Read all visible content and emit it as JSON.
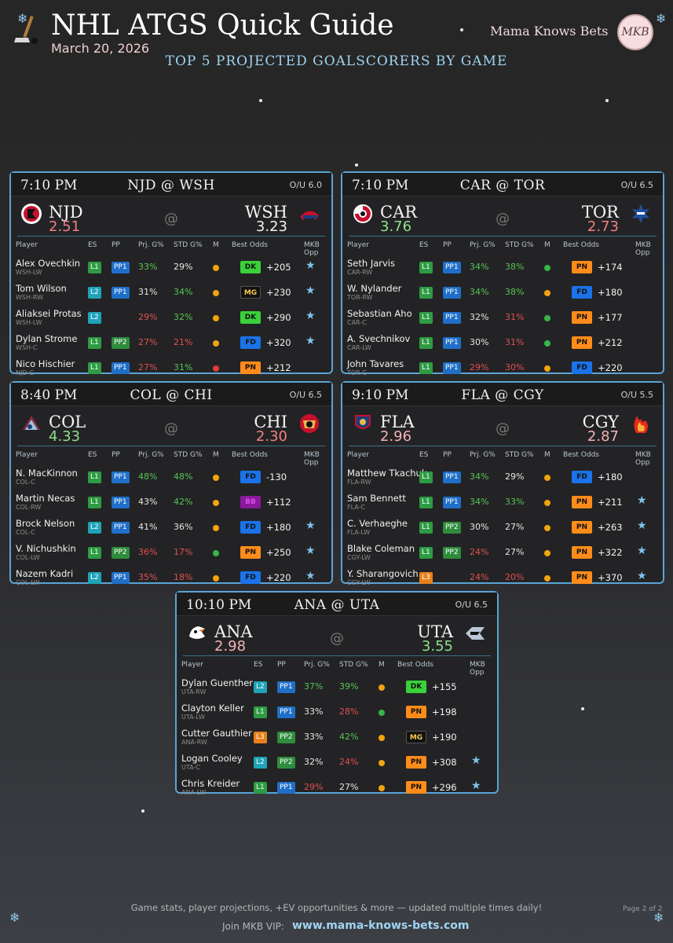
{
  "header": {
    "title": "NHL ATGS Quick Guide",
    "date": "March 20, 2026",
    "subtitle": "TOP 5 PROJECTED GOALSCORERS BY GAME",
    "brand": "Mama Knows Bets",
    "brand_logo_text": "MKB"
  },
  "columns": {
    "player": "Player",
    "es": "ES",
    "pp": "PP",
    "prj": "Prj. G%",
    "std": "STD G%",
    "m": "M",
    "odds": "Best Odds",
    "mkb": "MKB Opp"
  },
  "colors": {
    "L1": "#2e9c44",
    "L2": "#1fa3b8",
    "L3": "#e8811c",
    "PP1": "#1f6fc9",
    "PP2": "#2e8c3c",
    "DK": "#3ad13a",
    "MG": "#111111",
    "FD": "#1a73e8",
    "PN": "#ff8c1a",
    "BB": "#8a1a9c",
    "dot_orange": "#f2a40f",
    "dot_green": "#37b54a",
    "dot_red": "#e03b3b",
    "pct_green": "#56c456",
    "pct_red": "#e05050",
    "pct_neutral": "#e6e6e6",
    "proj_green": "#8fe08f",
    "proj_red": "#f08080",
    "proj_pink": "#f2b3b3"
  },
  "games": [
    {
      "time": "7:10 PM",
      "matchup": "NJD @ WSH",
      "ou": "O/U 6.0",
      "away": {
        "abbr": "NJD",
        "proj": "2.51",
        "proj_tone": "red",
        "logo": "devils-logo"
      },
      "home": {
        "abbr": "WSH",
        "proj": "3.23",
        "proj_tone": "neutral",
        "logo": "capitals-logo"
      },
      "at": "@",
      "players": [
        {
          "name": "Alex Ovechkin",
          "pos": "WSH-LW",
          "es": "L1",
          "pp": "PP1",
          "prj": "33%",
          "prj_tone": "green",
          "std": "29%",
          "std_tone": "neutral",
          "m": "orange",
          "book": "DK",
          "odds": "+205",
          "mkb": true
        },
        {
          "name": "Tom Wilson",
          "pos": "WSH-RW",
          "es": "L2",
          "pp": "PP1",
          "prj": "31%",
          "prj_tone": "neutral",
          "std": "34%",
          "std_tone": "green",
          "m": "orange",
          "book": "MG",
          "odds": "+230",
          "mkb": true
        },
        {
          "name": "Aliaksei Protas",
          "pos": "WSH-LW",
          "es": "L2",
          "pp": "",
          "prj": "29%",
          "prj_tone": "red",
          "std": "32%",
          "std_tone": "green",
          "m": "orange",
          "book": "DK",
          "odds": "+290",
          "mkb": true
        },
        {
          "name": "Dylan Strome",
          "pos": "WSH-C",
          "es": "L1",
          "pp": "PP2",
          "prj": "27%",
          "prj_tone": "red",
          "std": "21%",
          "std_tone": "red",
          "m": "orange",
          "book": "FD",
          "odds": "+320",
          "mkb": true
        },
        {
          "name": "Nico Hischier",
          "pos": "NJD-C",
          "es": "L1",
          "pp": "PP1",
          "prj": "27%",
          "prj_tone": "red",
          "std": "31%",
          "std_tone": "green",
          "m": "red",
          "book": "PN",
          "odds": "+212",
          "mkb": false
        }
      ]
    },
    {
      "time": "7:10 PM",
      "matchup": "CAR @ TOR",
      "ou": "O/U 6.5",
      "away": {
        "abbr": "CAR",
        "proj": "3.76",
        "proj_tone": "green",
        "logo": "hurricanes-logo"
      },
      "home": {
        "abbr": "TOR",
        "proj": "2.73",
        "proj_tone": "red",
        "logo": "maple-leafs-logo"
      },
      "at": "@",
      "players": [
        {
          "name": "Seth Jarvis",
          "pos": "CAR-RW",
          "es": "L1",
          "pp": "PP1",
          "prj": "34%",
          "prj_tone": "green",
          "std": "38%",
          "std_tone": "green",
          "m": "green",
          "book": "PN",
          "odds": "+174",
          "mkb": false
        },
        {
          "name": "W. Nylander",
          "pos": "TOR-RW",
          "es": "L1",
          "pp": "PP1",
          "prj": "34%",
          "prj_tone": "green",
          "std": "38%",
          "std_tone": "green",
          "m": "orange",
          "book": "FD",
          "odds": "+180",
          "mkb": false
        },
        {
          "name": "Sebastian Aho",
          "pos": "CAR-C",
          "es": "L1",
          "pp": "PP1",
          "prj": "32%",
          "prj_tone": "neutral",
          "std": "31%",
          "std_tone": "red",
          "m": "green",
          "book": "PN",
          "odds": "+177",
          "mkb": false
        },
        {
          "name": "A. Svechnikov",
          "pos": "CAR-LW",
          "es": "L1",
          "pp": "PP1",
          "prj": "30%",
          "prj_tone": "neutral",
          "std": "31%",
          "std_tone": "red",
          "m": "green",
          "book": "PN",
          "odds": "+212",
          "mkb": false
        },
        {
          "name": "John Tavares",
          "pos": "TOR-C",
          "es": "L1",
          "pp": "PP1",
          "prj": "29%",
          "prj_tone": "red",
          "std": "30%",
          "std_tone": "red",
          "m": "orange",
          "book": "FD",
          "odds": "+220",
          "mkb": false
        }
      ]
    },
    {
      "time": "8:40 PM",
      "matchup": "COL @ CHI",
      "ou": "O/U 6.5",
      "away": {
        "abbr": "COL",
        "proj": "4.33",
        "proj_tone": "green",
        "logo": "avalanche-logo"
      },
      "home": {
        "abbr": "CHI",
        "proj": "2.30",
        "proj_tone": "red",
        "logo": "blackhawks-logo"
      },
      "at": "@",
      "players": [
        {
          "name": "N. MacKinnon",
          "pos": "COL-C",
          "es": "L1",
          "pp": "PP1",
          "prj": "48%",
          "prj_tone": "green",
          "std": "48%",
          "std_tone": "green",
          "m": "orange",
          "book": "FD",
          "odds": "-130",
          "mkb": false
        },
        {
          "name": "Martin Necas",
          "pos": "COL-RW",
          "es": "L1",
          "pp": "PP1",
          "prj": "43%",
          "prj_tone": "neutral",
          "std": "42%",
          "std_tone": "green",
          "m": "orange",
          "book": "BB",
          "odds": "+112",
          "mkb": false
        },
        {
          "name": "Brock Nelson",
          "pos": "COL-C",
          "es": "L2",
          "pp": "PP1",
          "prj": "41%",
          "prj_tone": "neutral",
          "std": "36%",
          "std_tone": "neutral",
          "m": "orange",
          "book": "FD",
          "odds": "+180",
          "mkb": true
        },
        {
          "name": "V. Nichushkin",
          "pos": "COL-LW",
          "es": "L1",
          "pp": "PP2",
          "prj": "36%",
          "prj_tone": "red",
          "std": "17%",
          "std_tone": "red",
          "m": "green",
          "book": "PN",
          "odds": "+250",
          "mkb": true
        },
        {
          "name": "Nazem Kadri",
          "pos": "COL-LW",
          "es": "L2",
          "pp": "PP1",
          "prj": "35%",
          "prj_tone": "red",
          "std": "18%",
          "std_tone": "red",
          "m": "orange",
          "book": "FD",
          "odds": "+220",
          "mkb": true
        }
      ]
    },
    {
      "time": "9:10 PM",
      "matchup": "FLA @ CGY",
      "ou": "O/U 5.5",
      "away": {
        "abbr": "FLA",
        "proj": "2.96",
        "proj_tone": "pink",
        "logo": "panthers-logo"
      },
      "home": {
        "abbr": "CGY",
        "proj": "2.87",
        "proj_tone": "pink",
        "logo": "flames-logo"
      },
      "at": "@",
      "players": [
        {
          "name": "Matthew Tkachuk",
          "pos": "FLA-RW",
          "es": "L1",
          "pp": "PP1",
          "prj": "34%",
          "prj_tone": "green",
          "std": "29%",
          "std_tone": "neutral",
          "m": "orange",
          "book": "FD",
          "odds": "+180",
          "mkb": false
        },
        {
          "name": "Sam Bennett",
          "pos": "FLA-C",
          "es": "L1",
          "pp": "PP1",
          "prj": "34%",
          "prj_tone": "green",
          "std": "33%",
          "std_tone": "green",
          "m": "orange",
          "book": "PN",
          "odds": "+211",
          "mkb": true
        },
        {
          "name": "C. Verhaeghe",
          "pos": "FLA-LW",
          "es": "L1",
          "pp": "PP2",
          "prj": "30%",
          "prj_tone": "neutral",
          "std": "27%",
          "std_tone": "neutral",
          "m": "orange",
          "book": "PN",
          "odds": "+263",
          "mkb": true
        },
        {
          "name": "Blake Coleman",
          "pos": "CGY-LW",
          "es": "L1",
          "pp": "PP2",
          "prj": "24%",
          "prj_tone": "red",
          "std": "27%",
          "std_tone": "neutral",
          "m": "orange",
          "book": "PN",
          "odds": "+322",
          "mkb": true
        },
        {
          "name": "Y. Sharangovich",
          "pos": "CGY-LW",
          "es": "L3",
          "pp": "",
          "prj": "24%",
          "prj_tone": "red",
          "std": "20%",
          "std_tone": "red",
          "m": "orange",
          "book": "PN",
          "odds": "+370",
          "mkb": true
        }
      ]
    },
    {
      "time": "10:10 PM",
      "matchup": "ANA @ UTA",
      "ou": "O/U 6.5",
      "away": {
        "abbr": "ANA",
        "proj": "2.98",
        "proj_tone": "pink",
        "logo": "ducks-logo"
      },
      "home": {
        "abbr": "UTA",
        "proj": "3.55",
        "proj_tone": "green",
        "logo": "utah-logo"
      },
      "at": "@",
      "players": [
        {
          "name": "Dylan Guenther",
          "pos": "UTA-RW",
          "es": "L2",
          "pp": "PP1",
          "prj": "37%",
          "prj_tone": "green",
          "std": "39%",
          "std_tone": "green",
          "m": "orange",
          "book": "DK",
          "odds": "+155",
          "mkb": false
        },
        {
          "name": "Clayton Keller",
          "pos": "UTA-LW",
          "es": "L1",
          "pp": "PP1",
          "prj": "33%",
          "prj_tone": "neutral",
          "std": "28%",
          "std_tone": "red",
          "m": "green",
          "book": "PN",
          "odds": "+198",
          "mkb": false
        },
        {
          "name": "Cutter Gauthier",
          "pos": "ANA-RW",
          "es": "L3",
          "pp": "PP2",
          "prj": "33%",
          "prj_tone": "neutral",
          "std": "42%",
          "std_tone": "green",
          "m": "orange",
          "book": "MG",
          "odds": "+190",
          "mkb": false
        },
        {
          "name": "Logan Cooley",
          "pos": "UTA-C",
          "es": "L2",
          "pp": "PP2",
          "prj": "32%",
          "prj_tone": "neutral",
          "std": "24%",
          "std_tone": "red",
          "m": "orange",
          "book": "PN",
          "odds": "+308",
          "mkb": true
        },
        {
          "name": "Chris Kreider",
          "pos": "ANA-LW",
          "es": "L1",
          "pp": "PP1",
          "prj": "29%",
          "prj_tone": "red",
          "std": "27%",
          "std_tone": "neutral",
          "m": "orange",
          "book": "PN",
          "odds": "+296",
          "mkb": true
        }
      ]
    }
  ],
  "footer": {
    "tagline": "Game stats, player projections, +EV opportunities & more — updated multiple times daily!",
    "join": "Join MKB VIP:",
    "url": "www.mama-knows-bets.com",
    "page": "Page 2 of 2"
  }
}
